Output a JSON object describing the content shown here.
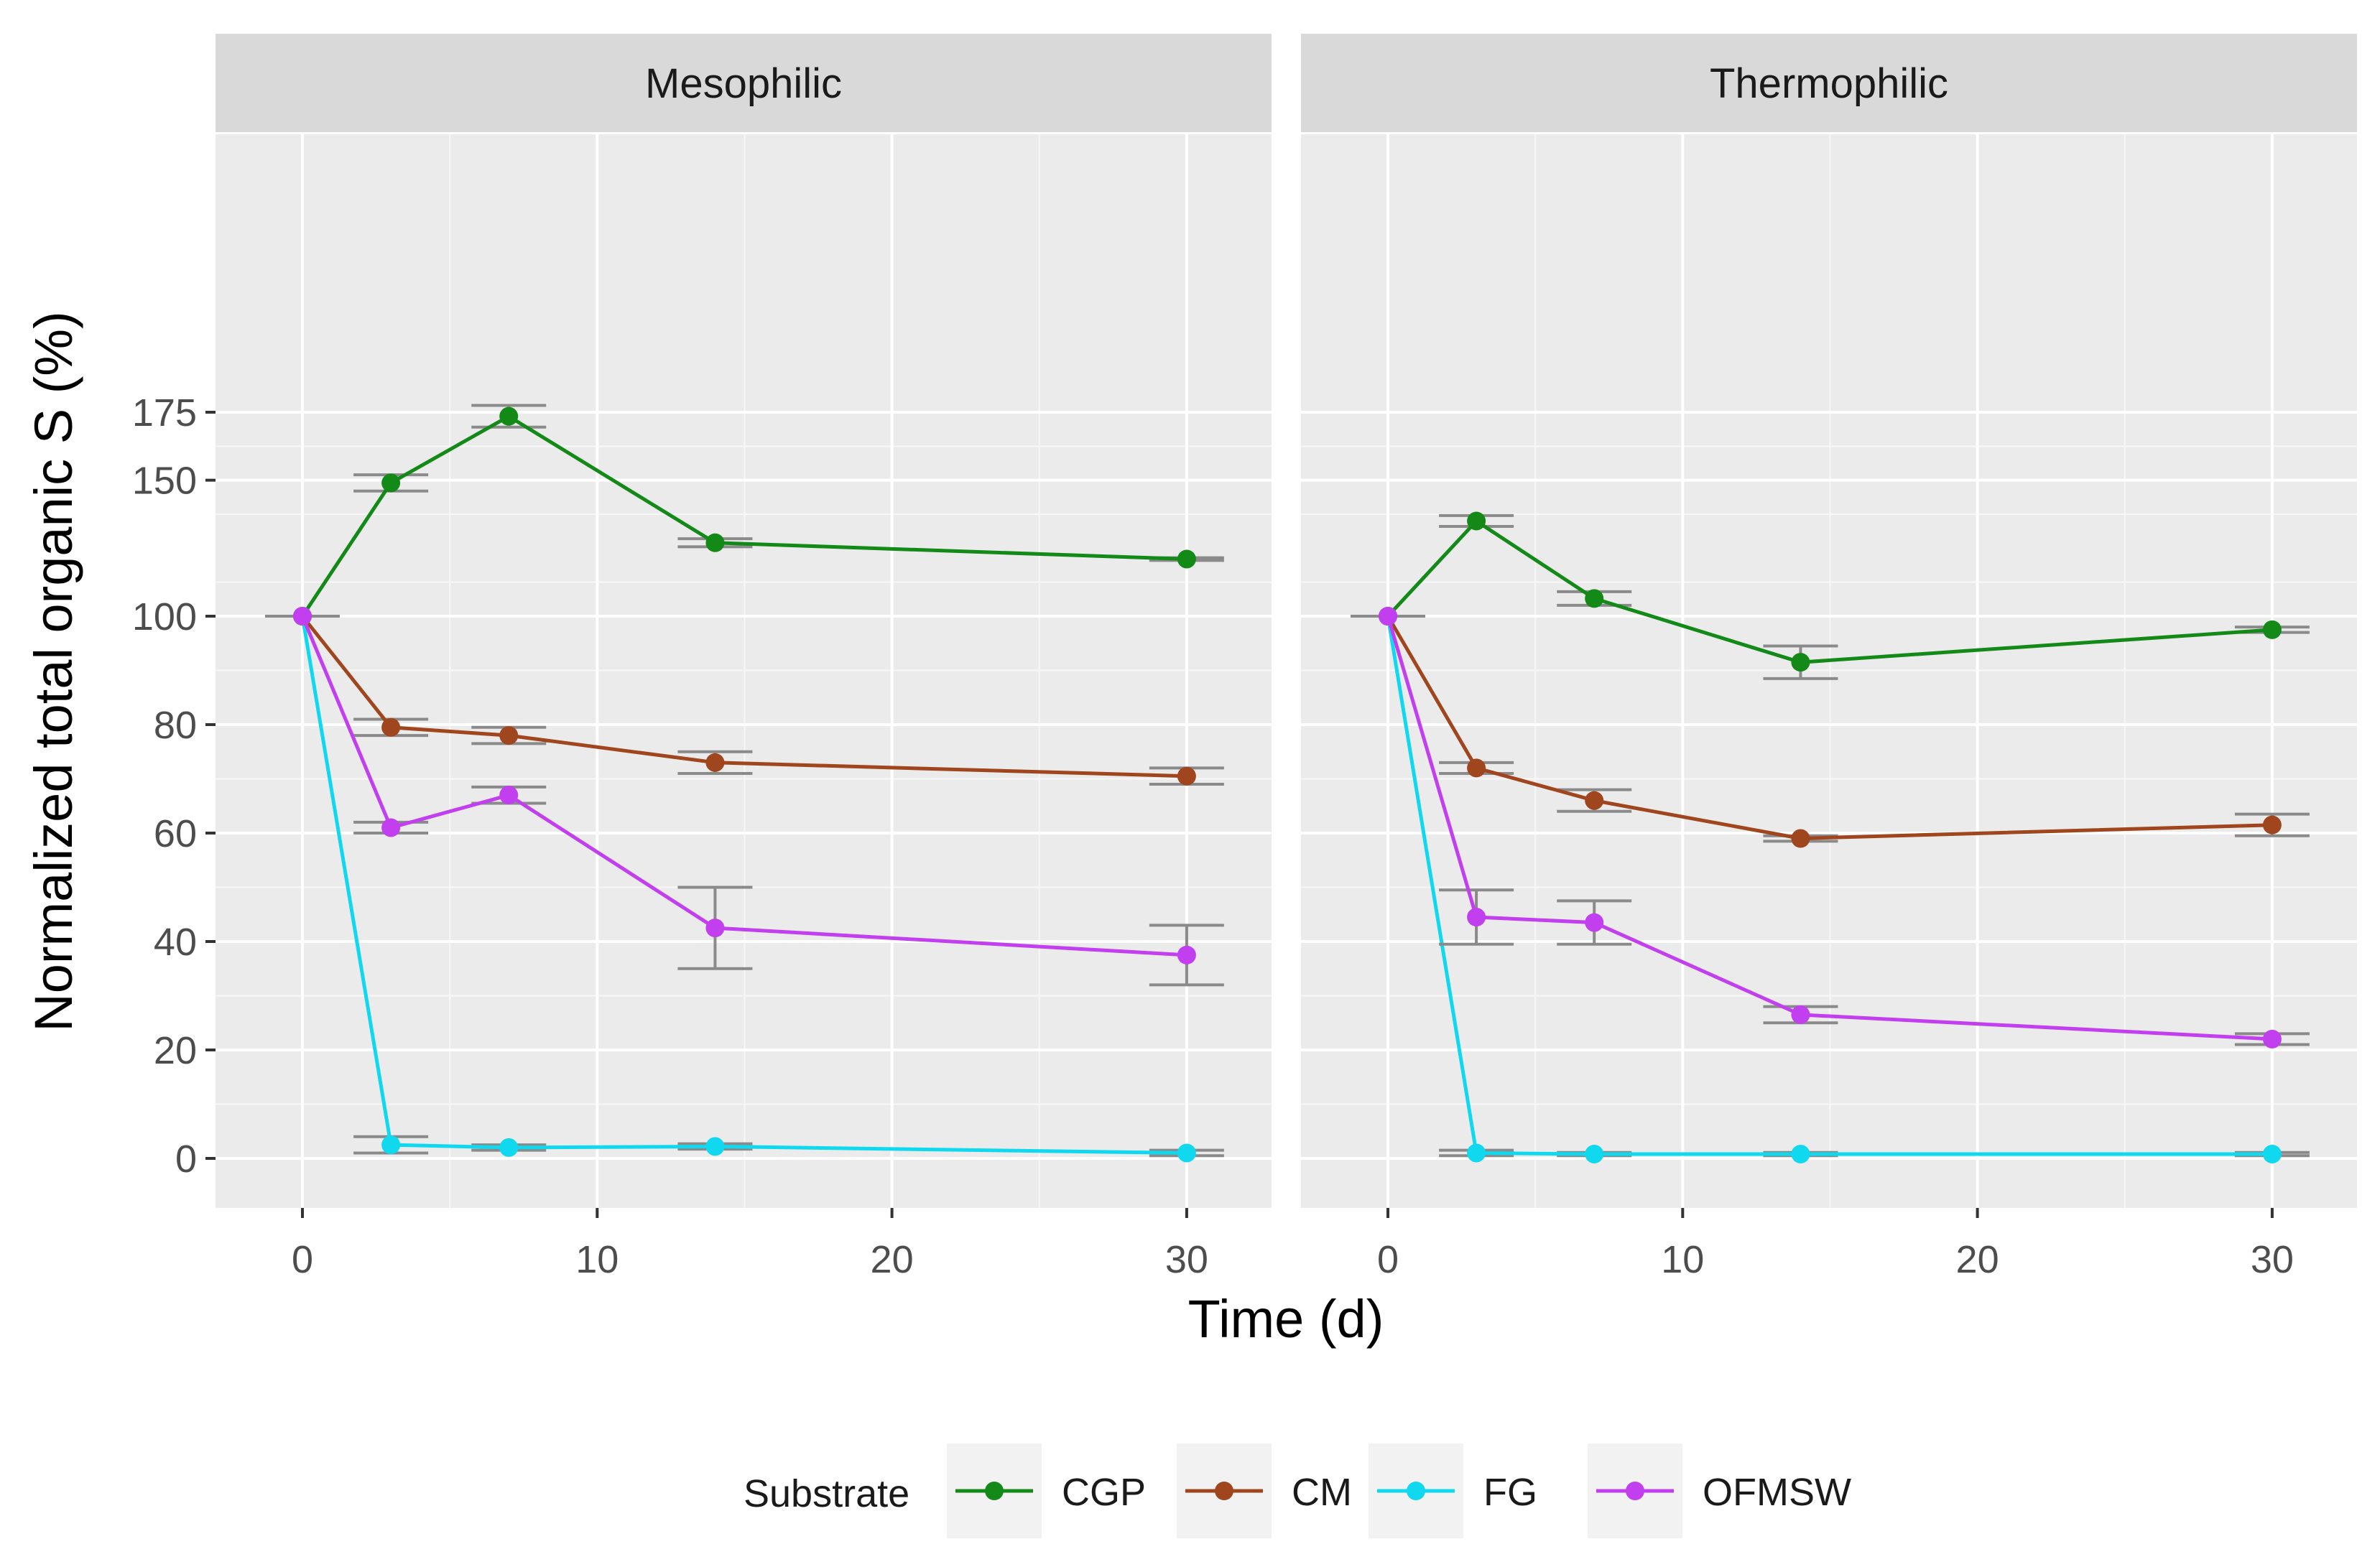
{
  "chart_data": {
    "type": "line",
    "ylabel": "Normalized total organic S (%)",
    "xlabel": "Time (d)",
    "panels": [
      {
        "title": "Mesophilic",
        "series": [
          {
            "name": "CGP",
            "x": [
              0,
              3,
              7,
              14,
              30
            ],
            "y": [
              100,
              149,
              173.5,
              127,
              121
            ],
            "err": [
              0,
              3,
              4,
              1.5,
              0.5
            ]
          },
          {
            "name": "CM",
            "x": [
              0,
              3,
              7,
              14,
              30
            ],
            "y": [
              100,
              79.5,
              78,
              73,
              70.5
            ],
            "err": [
              0,
              1.5,
              1.5,
              2,
              1.5
            ]
          },
          {
            "name": "FG",
            "x": [
              0,
              3,
              7,
              14,
              30
            ],
            "y": [
              100,
              2.5,
              2,
              2.2,
              1
            ],
            "err": [
              0,
              1.5,
              0.5,
              0.5,
              0.5
            ]
          },
          {
            "name": "OFMSW",
            "x": [
              0,
              3,
              7,
              14,
              30
            ],
            "y": [
              100,
              61,
              67,
              42.5,
              37.5
            ],
            "err": [
              0,
              1,
              1.5,
              7.5,
              5.5
            ]
          }
        ]
      },
      {
        "title": "Thermophilic",
        "series": [
          {
            "name": "CGP",
            "x": [
              0,
              3,
              7,
              14,
              30
            ],
            "y": [
              100,
              135,
              106.5,
              91.5,
              97.5
            ],
            "err": [
              0,
              2,
              2.5,
              3,
              0.5
            ]
          },
          {
            "name": "CM",
            "x": [
              0,
              3,
              7,
              14,
              30
            ],
            "y": [
              100,
              72,
              66,
              59,
              61.5
            ],
            "err": [
              0,
              1,
              2,
              0.5,
              2
            ]
          },
          {
            "name": "FG",
            "x": [
              0,
              3,
              7,
              14,
              30
            ],
            "y": [
              100,
              1,
              0.8,
              0.8,
              0.8
            ],
            "err": [
              0,
              0.5,
              0.3,
              0.3,
              0.3
            ]
          },
          {
            "name": "OFMSW",
            "x": [
              0,
              3,
              7,
              14,
              30
            ],
            "y": [
              100,
              44.5,
              43.5,
              26.5,
              22
            ],
            "err": [
              0,
              5,
              4,
              1.5,
              1
            ]
          }
        ]
      }
    ],
    "xlim": [
      -3,
      33
    ],
    "x_ticks": [
      0,
      10,
      20,
      30
    ],
    "y_ticks": [
      0,
      20,
      40,
      60,
      80,
      100,
      150,
      175
    ],
    "y_scale": "piecewise (0-100 and 100-175 shown on different scales)",
    "legend": {
      "title": "Substrate",
      "position": "bottom",
      "entries": [
        "CGP",
        "CM",
        "FG",
        "OFMSW"
      ]
    },
    "colors": {
      "CGP": "#138A17",
      "CM": "#A0461E",
      "FG": "#10D8EE",
      "OFMSW": "#C23FEF",
      "errorbar": "#8A8A8A",
      "panel_bg": "#EBEBEB",
      "strip_bg": "#D9D9D9",
      "grid": "#FFFFFF"
    }
  }
}
